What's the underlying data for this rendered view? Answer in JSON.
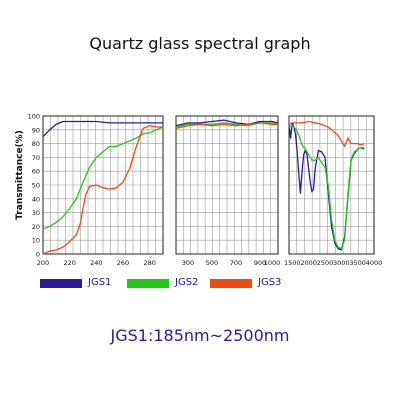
{
  "chart_data": {
    "type": "line",
    "title": "Quartz glass spectral graph",
    "subtitle": "JGS1:185nm~2500nm",
    "ylabel": "Transmittance(%)",
    "y_ticks": [
      "0",
      "10",
      "20",
      "30",
      "40",
      "50",
      "60",
      "70",
      "80",
      "90",
      "100"
    ],
    "ylim": [
      0,
      100
    ],
    "grid": true,
    "legend_position": "bottom",
    "series_meta": [
      {
        "name": "JGS1",
        "color": "#2a1a9a"
      },
      {
        "name": "JGS2",
        "color": "#22c81a"
      },
      {
        "name": "JGS3",
        "color": "#f04a14"
      }
    ],
    "panels": [
      {
        "xlim": [
          200,
          290
        ],
        "x_ticks": [
          200,
          220,
          240,
          260,
          280
        ],
        "series": [
          {
            "name": "JGS1",
            "x": [
              200,
              205,
              210,
              215,
              220,
              230,
              240,
              250,
              260,
              270,
              280,
              290
            ],
            "y": [
              85,
              90,
              94,
              96,
              96,
              96,
              96,
              95,
              95,
              95,
              95,
              95
            ]
          },
          {
            "name": "JGS2",
            "x": [
              200,
              205,
              210,
              215,
              220,
              225,
              230,
              235,
              240,
              245,
              250,
              255,
              260,
              265,
              270,
              275,
              280,
              285,
              290
            ],
            "y": [
              18,
              20,
              23,
              27,
              33,
              40,
              52,
              63,
              70,
              74,
              78,
              78,
              80,
              82,
              84,
              87,
              88,
              90,
              92
            ]
          },
          {
            "name": "JGS3",
            "x": [
              200,
              205,
              210,
              215,
              220,
              225,
              228,
              230,
              232,
              235,
              240,
              245,
              250,
              255,
              260,
              265,
              270,
              275,
              280,
              285,
              290
            ],
            "y": [
              0,
              2,
              3,
              5,
              9,
              14,
              22,
              33,
              43,
              49,
              50,
              48,
              47,
              48,
              52,
              62,
              78,
              91,
              93,
              92,
              92
            ]
          }
        ]
      },
      {
        "xlim": [
          200,
          1050
        ],
        "x_ticks": [
          300,
          500,
          700,
          900,
          1000
        ],
        "series": [
          {
            "name": "JGS1",
            "x": [
              200,
              300,
              400,
              500,
              600,
              700,
              800,
              900,
              1000,
              1050
            ],
            "y": [
              93,
              95,
              95,
              96,
              97,
              95,
              94,
              96,
              96,
              95
            ]
          },
          {
            "name": "JGS2",
            "x": [
              200,
              300,
              400,
              500,
              600,
              700,
              800,
              900,
              1000,
              1050
            ],
            "y": [
              92,
              94,
              94,
              94,
              95,
              94,
              93,
              95,
              95,
              94
            ]
          },
          {
            "name": "JGS3",
            "x": [
              200,
              300,
              400,
              500,
              600,
              700,
              800,
              900,
              1000,
              1050
            ],
            "y": [
              91,
              93,
              94,
              93,
              94,
              93,
              94,
              95,
              94,
              94
            ]
          }
        ]
      },
      {
        "xlim": [
          1400,
          4000
        ],
        "x_ticks": [
          1500,
          2000,
          2500,
          3000,
          3500,
          4000
        ],
        "series": [
          {
            "name": "JGS1",
            "x": [
              1400,
              1450,
              1500,
              1550,
              1600,
              1650,
              1700,
              1750,
              1800,
              1850,
              1900,
              1950,
              2000,
              2050,
              2100,
              2150,
              2200,
              2300,
              2400,
              2500,
              2600,
              2700,
              2800,
              2900,
              3000,
              3100,
              3200,
              3300,
              3400,
              3500,
              3600,
              3700
            ],
            "y": [
              94,
              84,
              95,
              92,
              87,
              74,
              58,
              44,
              60,
              72,
              75,
              72,
              62,
              52,
              45,
              47,
              62,
              75,
              74,
              70,
              45,
              20,
              8,
              4,
              3,
              12,
              40,
              68,
              73,
              76,
              77,
              76
            ]
          },
          {
            "name": "JGS2",
            "x": [
              1400,
              1500,
              1600,
              1700,
              1800,
              1900,
              2000,
              2100,
              2200,
              2300,
              2400,
              2500,
              2600,
              2700,
              2800,
              2900,
              3000,
              3100,
              3200,
              3300,
              3400,
              3500,
              3600,
              3700
            ],
            "y": [
              92,
              93,
              91,
              86,
              79,
              76,
              72,
              68,
              68,
              70,
              66,
              63,
              50,
              25,
              10,
              5,
              4,
              10,
              42,
              69,
              74,
              76,
              77,
              77
            ]
          },
          {
            "name": "JGS3",
            "x": [
              1400,
              1500,
              1600,
              1800,
              2000,
              2200,
              2400,
              2500,
              2600,
              2700,
              2800,
              2900,
              3000,
              3100,
              3200,
              3300,
              3400,
              3500,
              3600,
              3700
            ],
            "y": [
              94,
              95,
              95,
              95,
              96,
              95,
              94,
              93,
              92,
              90,
              88,
              86,
              82,
              78,
              84,
              80,
              80,
              80,
              79,
              80
            ]
          }
        ]
      }
    ]
  }
}
